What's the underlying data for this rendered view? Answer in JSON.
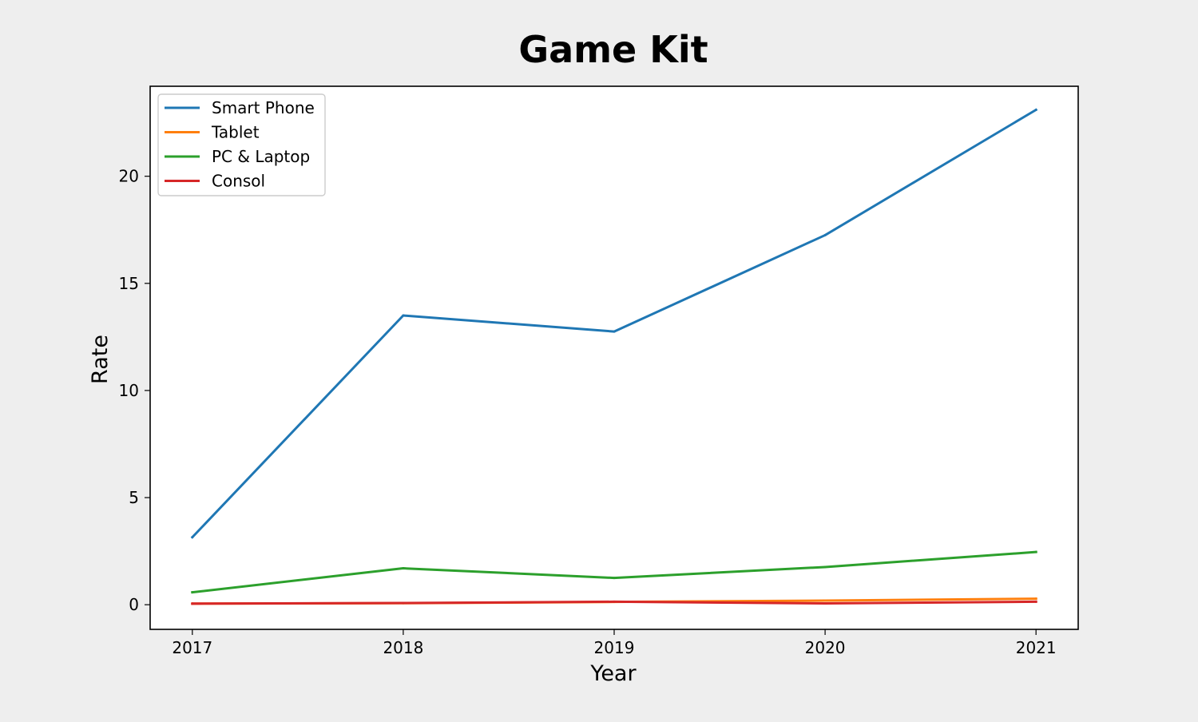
{
  "chart_data": {
    "type": "line",
    "title": "Game Kit",
    "xlabel": "Year",
    "ylabel": "Rate",
    "x": [
      2017,
      2018,
      2019,
      2020,
      2021
    ],
    "xlim": [
      2016.8,
      2021.2
    ],
    "ylim": [
      -1.15,
      24.2
    ],
    "x_ticks": [
      "2017",
      "2018",
      "2019",
      "2020",
      "2021"
    ],
    "y_ticks": [
      0,
      5,
      10,
      15,
      20
    ],
    "grid": false,
    "legend_position": "top-left",
    "series": [
      {
        "name": "Smart Phone",
        "color": "#1f77b4",
        "values": [
          3.15,
          13.5,
          12.75,
          17.25,
          23.1
        ]
      },
      {
        "name": "Tablet",
        "color": "#ff7f0e",
        "values": [
          0.05,
          0.07,
          0.13,
          0.19,
          0.28
        ]
      },
      {
        "name": "PC & Laptop",
        "color": "#2ca02c",
        "values": [
          0.58,
          1.7,
          1.25,
          1.76,
          2.46
        ]
      },
      {
        "name": "Consol",
        "color": "#d62728",
        "values": [
          0.05,
          0.08,
          0.14,
          0.06,
          0.14
        ]
      }
    ]
  }
}
